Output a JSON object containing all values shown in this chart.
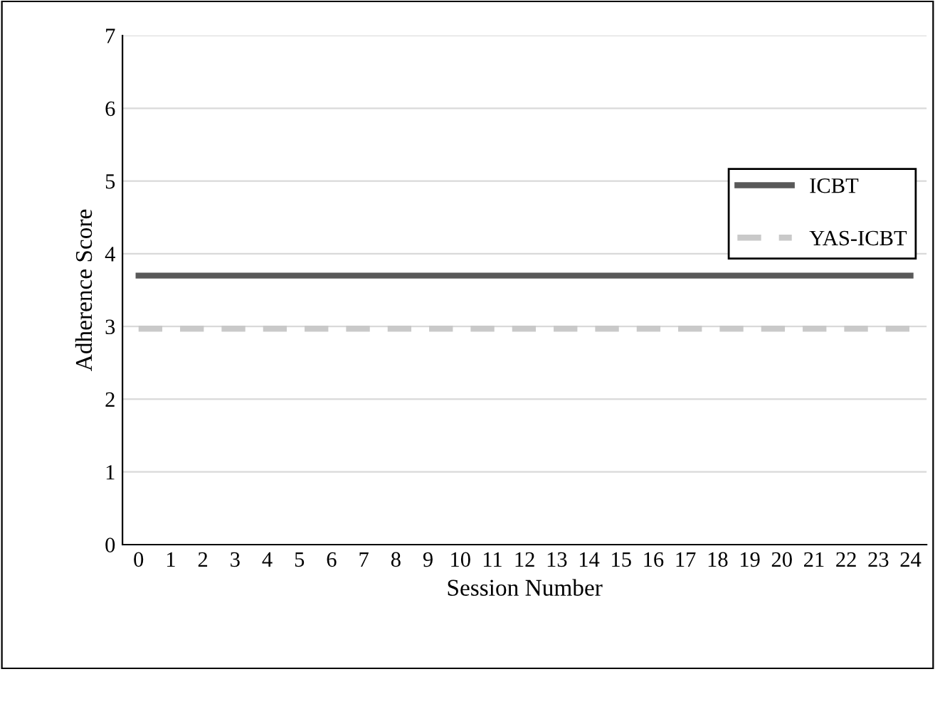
{
  "chart_data": {
    "type": "line",
    "xlabel": "Session Number",
    "ylabel": "Adherence Score",
    "categories": [
      "0",
      "1",
      "2",
      "3",
      "4",
      "5",
      "6",
      "7",
      "8",
      "9",
      "10",
      "11",
      "12",
      "13",
      "14",
      "15",
      "16",
      "17",
      "18",
      "19",
      "20",
      "21",
      "22",
      "23",
      "24"
    ],
    "series": [
      {
        "name": "ICBT",
        "color": "#595959",
        "line_style": "solid",
        "values": [
          3.7,
          3.7,
          3.7,
          3.7,
          3.7,
          3.7,
          3.7,
          3.7,
          3.7,
          3.7,
          3.7,
          3.7,
          3.7,
          3.7,
          3.7,
          3.7,
          3.7,
          3.7,
          3.7,
          3.7,
          3.7,
          3.7,
          3.7,
          3.7,
          3.7
        ]
      },
      {
        "name": "YAS-ICBT",
        "color": "#c9c9c9",
        "line_style": "dashed",
        "values": [
          2.97,
          2.97,
          2.97,
          2.97,
          2.97,
          2.97,
          2.97,
          2.97,
          2.97,
          2.97,
          2.97,
          2.97,
          2.97,
          2.97,
          2.97,
          2.97,
          2.97,
          2.97,
          2.97,
          2.97,
          2.97,
          2.97,
          2.97,
          2.97,
          2.97
        ]
      }
    ],
    "ylim": [
      0,
      7
    ],
    "yticks": [
      0,
      1,
      2,
      3,
      4,
      5,
      6,
      7
    ],
    "grid": "y",
    "legend": "right",
    "marker": "none"
  }
}
